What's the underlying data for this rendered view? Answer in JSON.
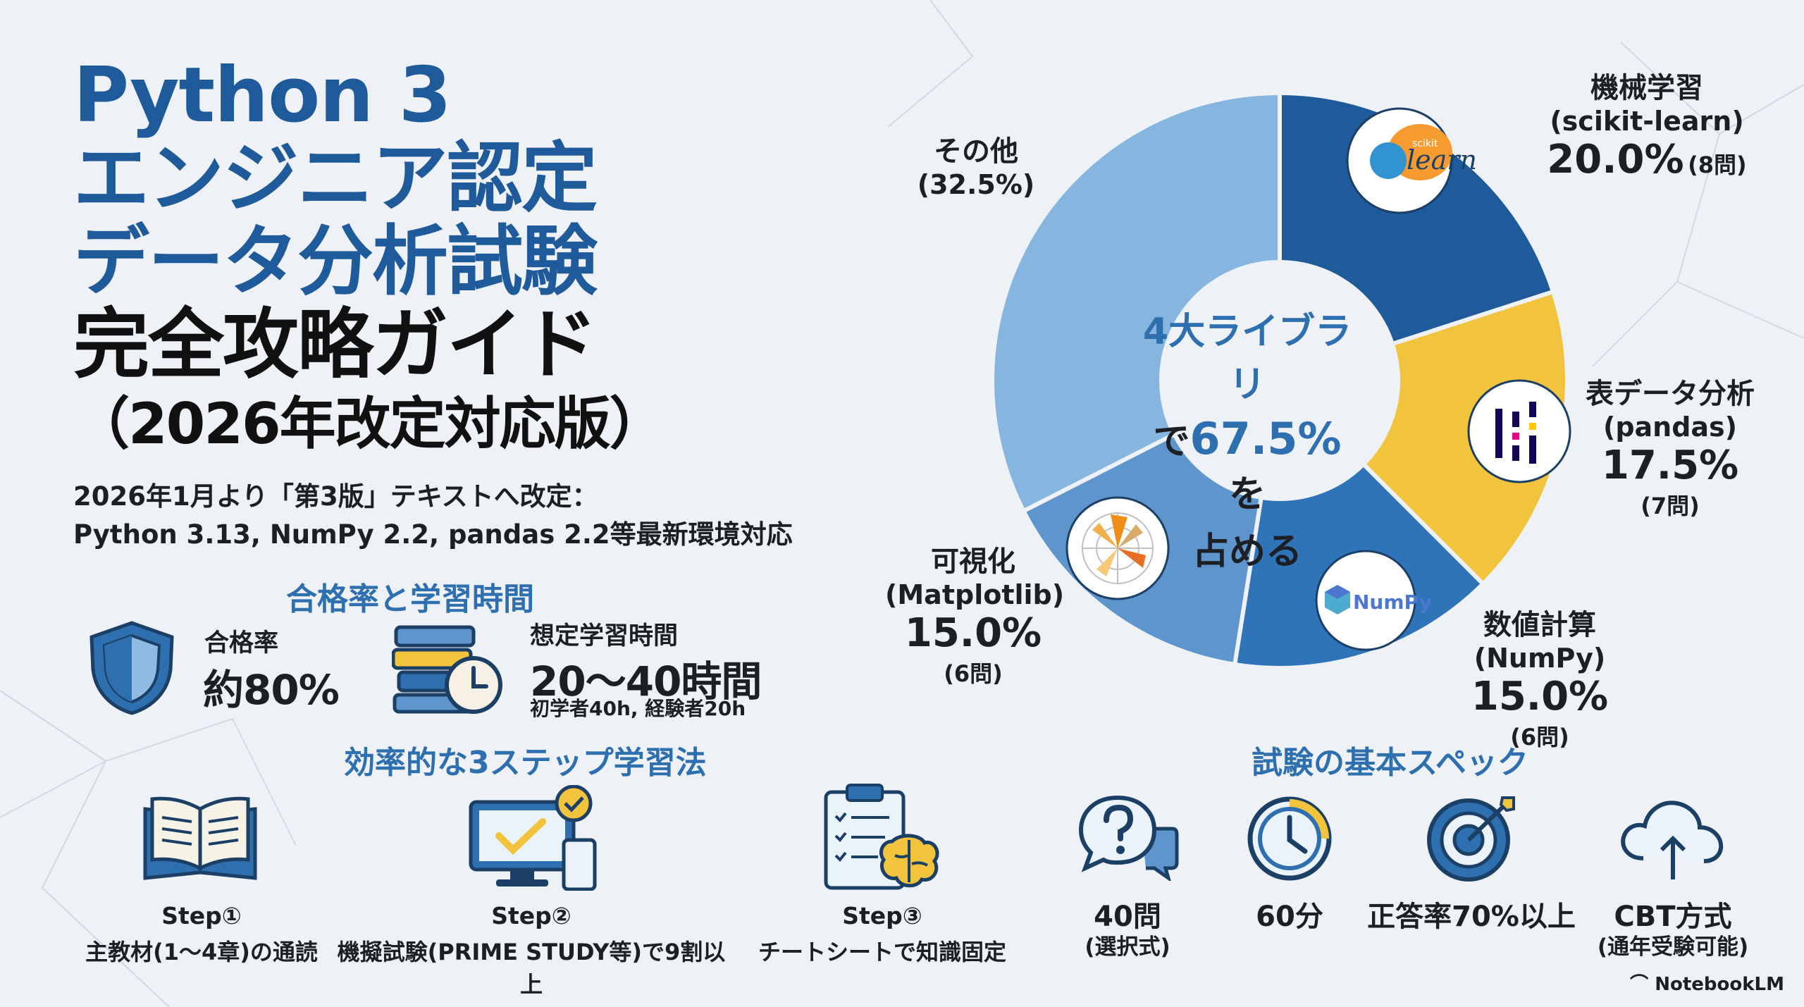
{
  "title": {
    "line1": "Python 3",
    "line2": "エンジニア認定",
    "line3": "データ分析試験",
    "line4": "完全攻略ガイド",
    "line5": "（2026年改定対応版）"
  },
  "subnote": {
    "line1": "2026年1月より「第3版」テキストへ改定：",
    "line2": "Python 3.13, NumPy 2.2, pandas 2.2等最新環境対応"
  },
  "pass_section": {
    "heading": "合格率と学習時間",
    "pass_label": "合格率",
    "pass_value": "約80%",
    "time_label": "想定学習時間",
    "time_value": "20〜40時間",
    "time_note": "初学者40h, 経験者20h"
  },
  "steps_section": {
    "heading": "効率的な3ステップ学習法",
    "steps": [
      {
        "label": "Step①",
        "desc": "主教材(1〜4章)の通読"
      },
      {
        "label": "Step②",
        "desc": "機擬試験(PRIME STUDY等)で9割以上"
      },
      {
        "label": "Step③",
        "desc": "チートシートで知識固定"
      }
    ]
  },
  "spec_section": {
    "heading": "試験の基本スペック",
    "specs": [
      {
        "label": "40問",
        "sub": "(選択式)"
      },
      {
        "label": "60分",
        "sub": ""
      },
      {
        "label": "正答率70%以上",
        "sub": ""
      },
      {
        "label": "CBT方式",
        "sub": "(通年受験可能)"
      }
    ]
  },
  "chart_center": {
    "line1": "4大ライブラリ",
    "line2_pre": "で",
    "line2_value": "67.5%",
    "line2_post": "を",
    "line3": "占める"
  },
  "chart_labels": {
    "sklearn": {
      "name": "機械学習",
      "lib": "(scikit-learn)",
      "pct": "20.0%",
      "q": "(8問)",
      "logo_small": "scikit",
      "logo_text": "learn"
    },
    "pandas": {
      "name": "表データ分析",
      "lib": "(pandas)",
      "pct": "17.5%",
      "q": "(7問)"
    },
    "numpy": {
      "name": "数値計算",
      "lib": "(NumPy)",
      "pct": "15.0%",
      "q": "(6問)",
      "logo_text": "NumPy"
    },
    "matplotlib": {
      "name": "可視化",
      "lib": "(Matplotlib)",
      "pct": "15.0%",
      "q": "(6問)"
    },
    "other": {
      "name": "その他",
      "pct": "(32.5%)"
    }
  },
  "chart_data": {
    "type": "pie",
    "title": "4大ライブラリで67.5%を占める",
    "categories": [
      "機械学習 (scikit-learn)",
      "表データ分析 (pandas)",
      "数値計算 (NumPy)",
      "可視化 (Matplotlib)",
      "その他"
    ],
    "values": [
      20.0,
      17.5,
      15.0,
      15.0,
      32.5
    ],
    "questions": [
      8,
      7,
      6,
      6,
      null
    ],
    "colors": [
      "#1f5a9a",
      "#f2c43d",
      "#2f73b8",
      "#5d95cc",
      "#86b6e0"
    ]
  },
  "footer": "NotebookLM"
}
